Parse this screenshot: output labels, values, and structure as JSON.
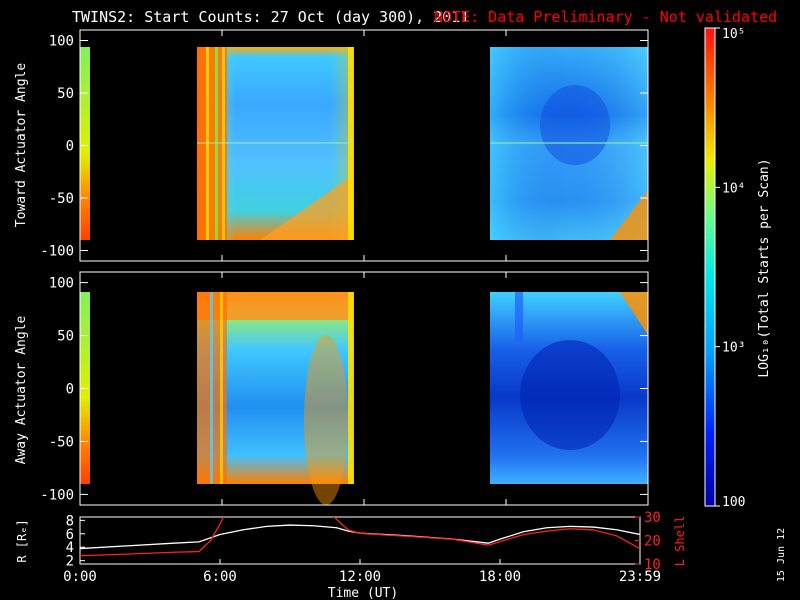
{
  "header": {
    "title": "TWINS2: Start Counts: 27 Oct (day 300), 2011",
    "note": "NOTE: Data Preliminary - Not validated"
  },
  "colors": {
    "background": "#000000",
    "note": "#ff0000",
    "axis": "#ffffff",
    "r_line": "#ffffff",
    "lshell_line": "#ff2020"
  },
  "chart_data": [
    {
      "type": "heatmap",
      "panel": "toward",
      "ylabel": "Toward Actuator Angle",
      "ylim": [
        -110,
        110
      ],
      "yticks": [
        100,
        50,
        0,
        -50,
        -100
      ],
      "xlim_hours": [
        0,
        24
      ],
      "data_blocks_hours": [
        [
          0,
          0.35
        ],
        [
          4.9,
          11.45
        ],
        [
          17.0,
          24.0
        ]
      ],
      "data_angle_range": [
        -90,
        90
      ],
      "colorscale": "log",
      "note": "counts per scan; orange/red near edges of data blocks, cyan/blue in centers"
    },
    {
      "type": "heatmap",
      "panel": "away",
      "ylabel": "Away Actuator Angle",
      "ylim": [
        -110,
        110
      ],
      "yticks": [
        100,
        50,
        0,
        -50,
        -100
      ],
      "xlim_hours": [
        0,
        24
      ],
      "data_blocks_hours": [
        [
          0,
          0.35
        ],
        [
          4.9,
          11.45
        ],
        [
          17.0,
          24.0
        ]
      ],
      "data_angle_range": [
        -90,
        90
      ],
      "colorscale": "log"
    },
    {
      "type": "line",
      "panel": "orbit",
      "xlabel": "Time (UT)",
      "xticks": [
        "0:00",
        "6:00",
        "12:00",
        "18:00",
        "23:59"
      ],
      "xtick_hours": [
        0,
        6,
        12,
        18,
        24
      ],
      "ylabel_left": "R [Rₑ]",
      "ylim_left": [
        1.5,
        8.5
      ],
      "yticks_left": [
        2,
        4,
        6,
        8
      ],
      "ylabel_right": "L Shell",
      "ylim_right": [
        10,
        30
      ],
      "yticks_right": [
        10,
        20,
        30
      ],
      "series": [
        {
          "name": "R",
          "axis": "left",
          "x": [
            0,
            2,
            4,
            5.1,
            6,
            7,
            8,
            9,
            10,
            11,
            11.5,
            12,
            14,
            16,
            17.5,
            18,
            19,
            20,
            21,
            22,
            23,
            24
          ],
          "y": [
            3.8,
            4.2,
            4.6,
            4.8,
            5.9,
            6.6,
            7.1,
            7.3,
            7.2,
            6.9,
            6.4,
            6.1,
            5.7,
            5.2,
            4.6,
            5.2,
            6.3,
            6.9,
            7.1,
            7.0,
            6.6,
            5.9
          ]
        },
        {
          "name": "L Shell",
          "axis": "right",
          "x": [
            0,
            2,
            4,
            5.1,
            5.6,
            6.0,
            6.2,
            10.8,
            11.1,
            11.5,
            12,
            14,
            16,
            17.5,
            18,
            19,
            20,
            21,
            22,
            23,
            24
          ],
          "y": [
            13.5,
            14.2,
            15.0,
            15.3,
            20,
            27,
            31,
            31,
            28,
            24.5,
            23.0,
            21.8,
            20.5,
            18.0,
            19.5,
            22.5,
            24.0,
            25.0,
            24.5,
            22.0,
            16.5
          ]
        }
      ]
    }
  ],
  "colorbar": {
    "label": "LOG₁₀(Total Starts per Scan)",
    "ticks": [
      "10⁵",
      "10⁴",
      "10³",
      "100"
    ],
    "tick_values": [
      100000,
      10000,
      1000,
      100
    ],
    "range": [
      100,
      100000
    ]
  },
  "footer": {
    "date": "15 Jun 12"
  }
}
